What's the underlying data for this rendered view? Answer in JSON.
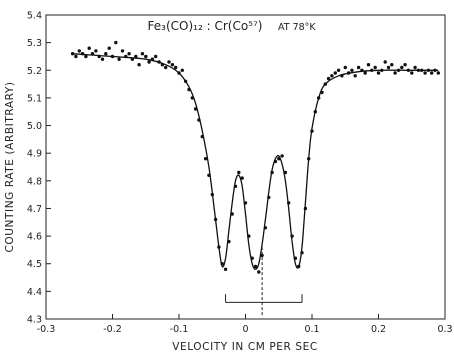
{
  "chart_data": {
    "type": "scatter",
    "title_formula": "Fe₃(CO)₁₂ : Cr(Co⁵⁷)",
    "title_condition": "AT 78°K",
    "xlabel": "VELOCITY IN CM PER SEC",
    "ylabel": "COUNTING RATE (ARBITRARY)",
    "xlim": [
      -0.3,
      0.3
    ],
    "ylim": [
      4.3,
      5.4
    ],
    "x_ticks": [
      -0.3,
      -0.2,
      -0.1,
      0,
      0.1,
      0.2,
      0.3
    ],
    "x_tick_labels": [
      "-0.3",
      "-0.2",
      "-0.1",
      "0",
      "0.1",
      "0.2",
      "0.3"
    ],
    "y_ticks": [
      4.3,
      4.4,
      4.5,
      4.6,
      4.7,
      4.8,
      4.9,
      5.0,
      5.1,
      5.2,
      5.3,
      5.4
    ],
    "y_tick_labels": [
      "4.3",
      "4.4",
      "4.5",
      "4.6",
      "4.7",
      "4.8",
      "4.9",
      "5.0",
      "5.1",
      "5.2",
      "5.3",
      "5.4"
    ],
    "grid": false,
    "fit_curve": {
      "x": [
        -0.26,
        -0.2,
        -0.15,
        -0.12,
        -0.1,
        -0.085,
        -0.075,
        -0.065,
        -0.055,
        -0.047,
        -0.04,
        -0.035,
        -0.03,
        -0.025,
        -0.02,
        -0.015,
        -0.01,
        -0.005,
        0.0,
        0.005,
        0.01,
        0.015,
        0.02,
        0.025,
        0.03,
        0.035,
        0.04,
        0.045,
        0.05,
        0.055,
        0.06,
        0.065,
        0.07,
        0.075,
        0.08,
        0.085,
        0.09,
        0.095,
        0.1,
        0.11,
        0.12,
        0.14,
        0.17,
        0.2,
        0.25,
        0.29
      ],
      "y": [
        5.26,
        5.25,
        5.24,
        5.22,
        5.19,
        5.14,
        5.08,
        4.98,
        4.85,
        4.7,
        4.56,
        4.49,
        4.52,
        4.62,
        4.72,
        4.8,
        4.82,
        4.78,
        4.68,
        4.57,
        4.5,
        4.48,
        4.5,
        4.57,
        4.66,
        4.76,
        4.84,
        4.88,
        4.89,
        4.86,
        4.8,
        4.7,
        4.58,
        4.5,
        4.49,
        4.56,
        4.72,
        4.88,
        4.99,
        5.1,
        5.15,
        5.18,
        5.195,
        5.2,
        5.2,
        5.2
      ]
    },
    "points": {
      "x": [
        -0.26,
        -0.255,
        -0.25,
        -0.245,
        -0.24,
        -0.235,
        -0.23,
        -0.225,
        -0.22,
        -0.215,
        -0.21,
        -0.205,
        -0.2,
        -0.195,
        -0.19,
        -0.185,
        -0.18,
        -0.175,
        -0.17,
        -0.165,
        -0.16,
        -0.155,
        -0.15,
        -0.145,
        -0.14,
        -0.135,
        -0.13,
        -0.125,
        -0.12,
        -0.115,
        -0.11,
        -0.105,
        -0.1,
        -0.095,
        -0.09,
        -0.085,
        -0.08,
        -0.075,
        -0.07,
        -0.065,
        -0.06,
        -0.055,
        -0.05,
        -0.045,
        -0.04,
        -0.035,
        -0.03,
        -0.025,
        -0.02,
        -0.015,
        -0.01,
        -0.005,
        0.0,
        0.005,
        0.01,
        0.015,
        0.02,
        0.025,
        0.03,
        0.035,
        0.04,
        0.045,
        0.05,
        0.055,
        0.06,
        0.065,
        0.07,
        0.075,
        0.08,
        0.085,
        0.09,
        0.095,
        0.1,
        0.105,
        0.11,
        0.115,
        0.12,
        0.125,
        0.13,
        0.135,
        0.14,
        0.145,
        0.15,
        0.155,
        0.16,
        0.165,
        0.17,
        0.175,
        0.18,
        0.185,
        0.19,
        0.195,
        0.2,
        0.205,
        0.21,
        0.215,
        0.22,
        0.225,
        0.23,
        0.235,
        0.24,
        0.245,
        0.25,
        0.255,
        0.26,
        0.265,
        0.27,
        0.275,
        0.28,
        0.285,
        0.29
      ],
      "y": [
        5.26,
        5.25,
        5.27,
        5.26,
        5.25,
        5.28,
        5.26,
        5.27,
        5.25,
        5.24,
        5.26,
        5.28,
        5.25,
        5.3,
        5.24,
        5.27,
        5.25,
        5.26,
        5.24,
        5.25,
        5.22,
        5.26,
        5.25,
        5.23,
        5.24,
        5.25,
        5.23,
        5.22,
        5.21,
        5.23,
        5.22,
        5.21,
        5.19,
        5.2,
        5.16,
        5.13,
        5.1,
        5.06,
        5.02,
        4.96,
        4.88,
        4.82,
        4.75,
        4.66,
        4.56,
        4.5,
        4.48,
        4.58,
        4.68,
        4.78,
        4.83,
        4.81,
        4.72,
        4.6,
        4.52,
        4.49,
        4.47,
        4.53,
        4.63,
        4.74,
        4.83,
        4.87,
        4.88,
        4.89,
        4.83,
        4.72,
        4.6,
        4.52,
        4.49,
        4.54,
        4.7,
        4.88,
        4.98,
        5.05,
        5.1,
        5.12,
        5.15,
        5.17,
        5.18,
        5.19,
        5.2,
        5.18,
        5.21,
        5.19,
        5.2,
        5.18,
        5.21,
        5.2,
        5.19,
        5.22,
        5.2,
        5.21,
        5.19,
        5.2,
        5.23,
        5.21,
        5.22,
        5.19,
        5.2,
        5.21,
        5.22,
        5.2,
        5.19,
        5.21,
        5.2,
        5.2,
        5.19,
        5.2,
        5.19,
        5.2,
        5.19
      ]
    },
    "bracket": {
      "x_left": -0.03,
      "x_right": 0.085,
      "x_center": 0.025,
      "y_bar": 4.36,
      "y_top": 4.39
    }
  }
}
